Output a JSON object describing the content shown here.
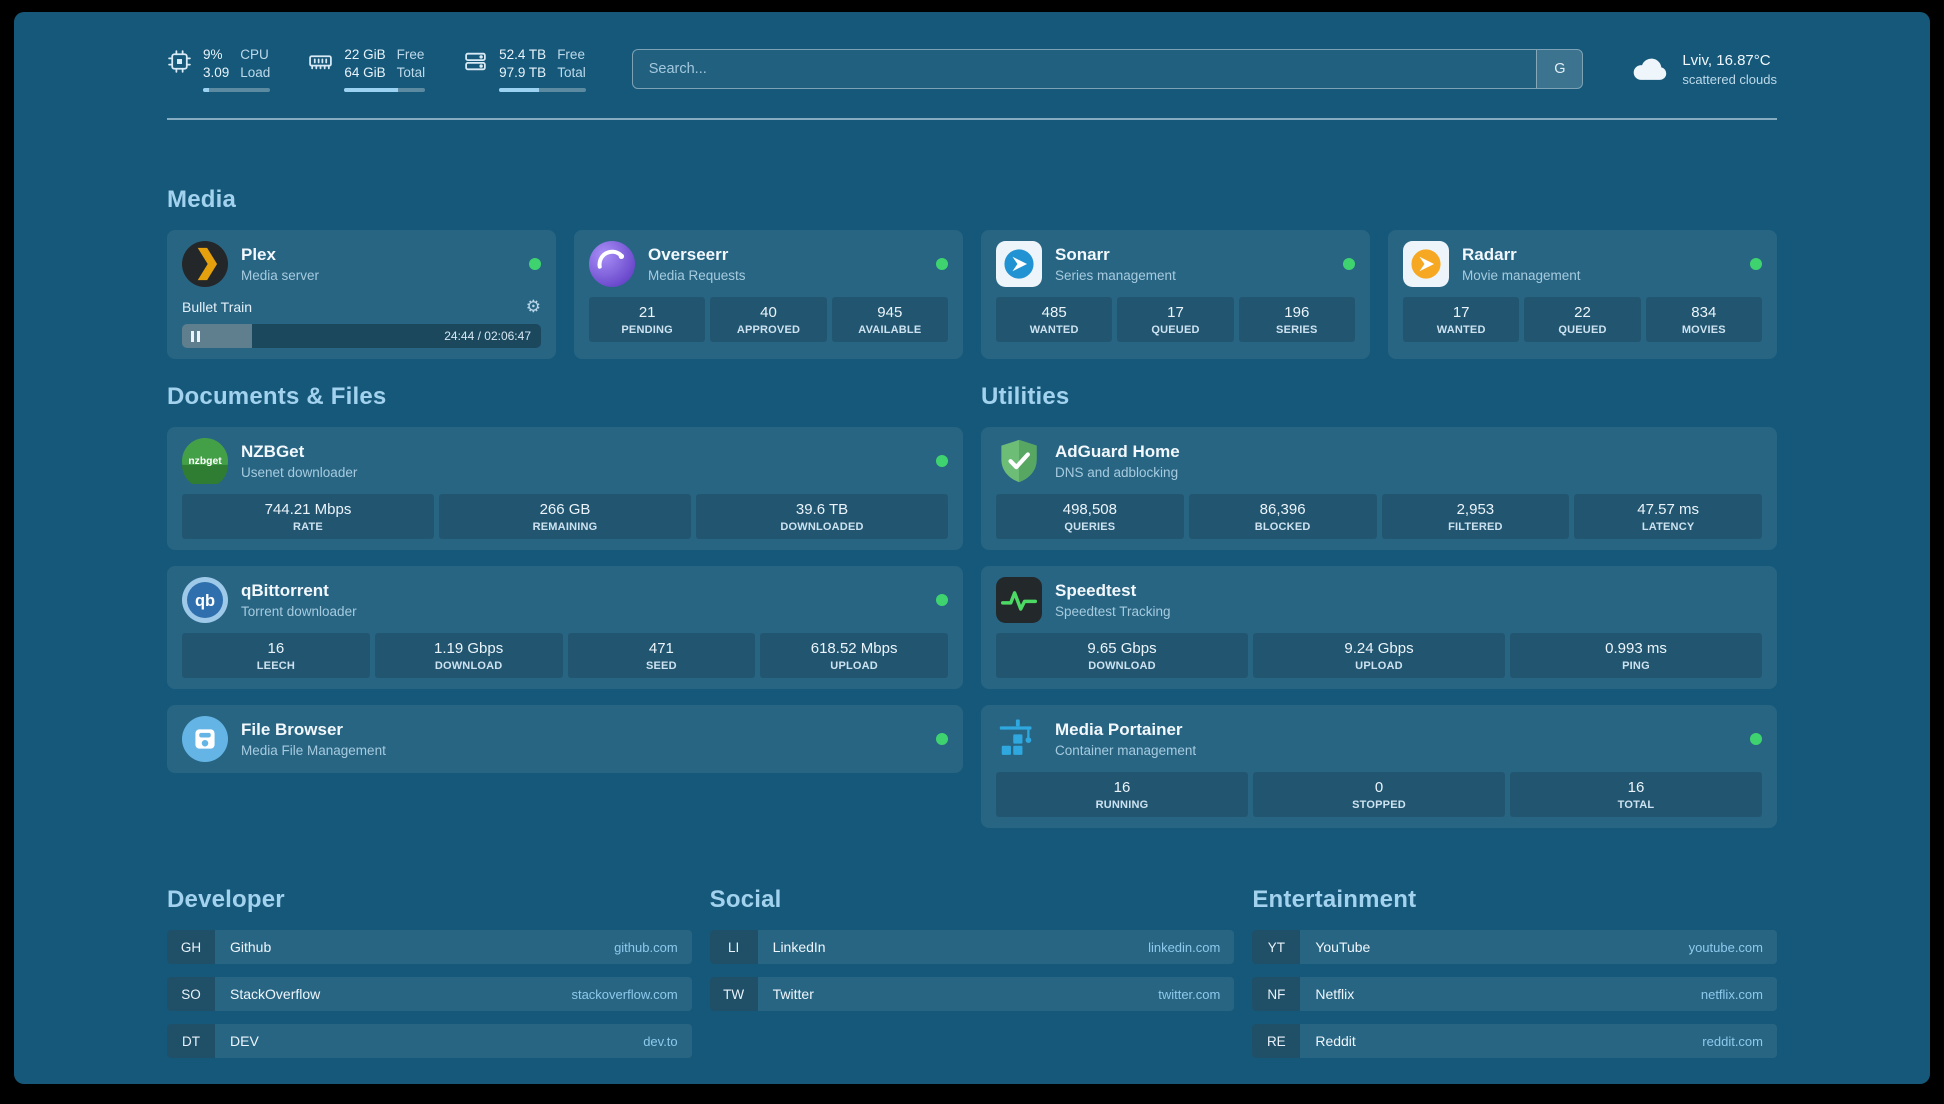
{
  "colors": {
    "background": "#165879",
    "status_green": "#3fd36f",
    "accent_blue": "#9bd2f2",
    "heading_blue": "#a2d2ee",
    "url_blue": "#8dc9ec"
  },
  "header": {
    "cpu": {
      "values": [
        "9%",
        "3.09"
      ],
      "labels": [
        "CPU",
        "Load"
      ],
      "progress_pct": 9
    },
    "memory": {
      "values": [
        "22 GiB",
        "64 GiB"
      ],
      "labels": [
        "Free",
        "Total"
      ],
      "progress_pct": 66
    },
    "disk": {
      "values": [
        "52.4 TB",
        "97.9 TB"
      ],
      "labels": [
        "Free",
        "Total"
      ],
      "progress_pct": 46
    },
    "search": {
      "placeholder": "Search...",
      "engine_label": "G"
    },
    "weather": {
      "location_temp": "Lviv, 16.87°C",
      "condition": "scattered clouds"
    }
  },
  "sections": {
    "media": {
      "title": "Media",
      "plex": {
        "name": "Plex",
        "subtitle": "Media server",
        "now_playing": "Bullet Train",
        "time": "24:44 / 02:06:47",
        "progress_pct": 19.5
      },
      "overseerr": {
        "name": "Overseerr",
        "subtitle": "Media Requests",
        "stats": [
          {
            "value": "21",
            "label": "PENDING"
          },
          {
            "value": "40",
            "label": "APPROVED"
          },
          {
            "value": "945",
            "label": "AVAILABLE"
          }
        ]
      },
      "sonarr": {
        "name": "Sonarr",
        "subtitle": "Series management",
        "stats": [
          {
            "value": "485",
            "label": "WANTED"
          },
          {
            "value": "17",
            "label": "QUEUED"
          },
          {
            "value": "196",
            "label": "SERIES"
          }
        ]
      },
      "radarr": {
        "name": "Radarr",
        "subtitle": "Movie management",
        "stats": [
          {
            "value": "17",
            "label": "WANTED"
          },
          {
            "value": "22",
            "label": "QUEUED"
          },
          {
            "value": "834",
            "label": "MOVIES"
          }
        ]
      }
    },
    "documents": {
      "title": "Documents & Files",
      "nzbget": {
        "name": "NZBGet",
        "subtitle": "Usenet downloader",
        "stats": [
          {
            "value": "744.21 Mbps",
            "label": "RATE"
          },
          {
            "value": "266 GB",
            "label": "REMAINING"
          },
          {
            "value": "39.6 TB",
            "label": "DOWNLOADED"
          }
        ]
      },
      "qbittorrent": {
        "name": "qBittorrent",
        "subtitle": "Torrent downloader",
        "stats": [
          {
            "value": "16",
            "label": "LEECH"
          },
          {
            "value": "1.19 Gbps",
            "label": "DOWNLOAD"
          },
          {
            "value": "471",
            "label": "SEED"
          },
          {
            "value": "618.52 Mbps",
            "label": "UPLOAD"
          }
        ]
      },
      "filebrowser": {
        "name": "File Browser",
        "subtitle": "Media File Management"
      }
    },
    "utilities": {
      "title": "Utilities",
      "adguard": {
        "name": "AdGuard Home",
        "subtitle": "DNS and adblocking",
        "stats": [
          {
            "value": "498,508",
            "label": "QUERIES"
          },
          {
            "value": "86,396",
            "label": "BLOCKED"
          },
          {
            "value": "2,953",
            "label": "FILTERED"
          },
          {
            "value": "47.57 ms",
            "label": "LATENCY"
          }
        ]
      },
      "speedtest": {
        "name": "Speedtest",
        "subtitle": "Speedtest Tracking",
        "stats": [
          {
            "value": "9.65 Gbps",
            "label": "DOWNLOAD"
          },
          {
            "value": "9.24 Gbps",
            "label": "UPLOAD"
          },
          {
            "value": "0.993 ms",
            "label": "PING"
          }
        ]
      },
      "portainer": {
        "name": "Media Portainer",
        "subtitle": "Container management",
        "stats": [
          {
            "value": "16",
            "label": "RUNNING"
          },
          {
            "value": "0",
            "label": "STOPPED"
          },
          {
            "value": "16",
            "label": "TOTAL"
          }
        ]
      }
    },
    "bookmarks": [
      {
        "title": "Developer",
        "items": [
          {
            "abbr": "GH",
            "name": "Github",
            "url": "github.com"
          },
          {
            "abbr": "SO",
            "name": "StackOverflow",
            "url": "stackoverflow.com"
          },
          {
            "abbr": "DT",
            "name": "DEV",
            "url": "dev.to"
          }
        ]
      },
      {
        "title": "Social",
        "items": [
          {
            "abbr": "LI",
            "name": "LinkedIn",
            "url": "linkedin.com"
          },
          {
            "abbr": "TW",
            "name": "Twitter",
            "url": "twitter.com"
          }
        ]
      },
      {
        "title": "Entertainment",
        "items": [
          {
            "abbr": "YT",
            "name": "YouTube",
            "url": "youtube.com"
          },
          {
            "abbr": "NF",
            "name": "Netflix",
            "url": "netflix.com"
          },
          {
            "abbr": "RE",
            "name": "Reddit",
            "url": "reddit.com"
          }
        ]
      }
    ]
  }
}
